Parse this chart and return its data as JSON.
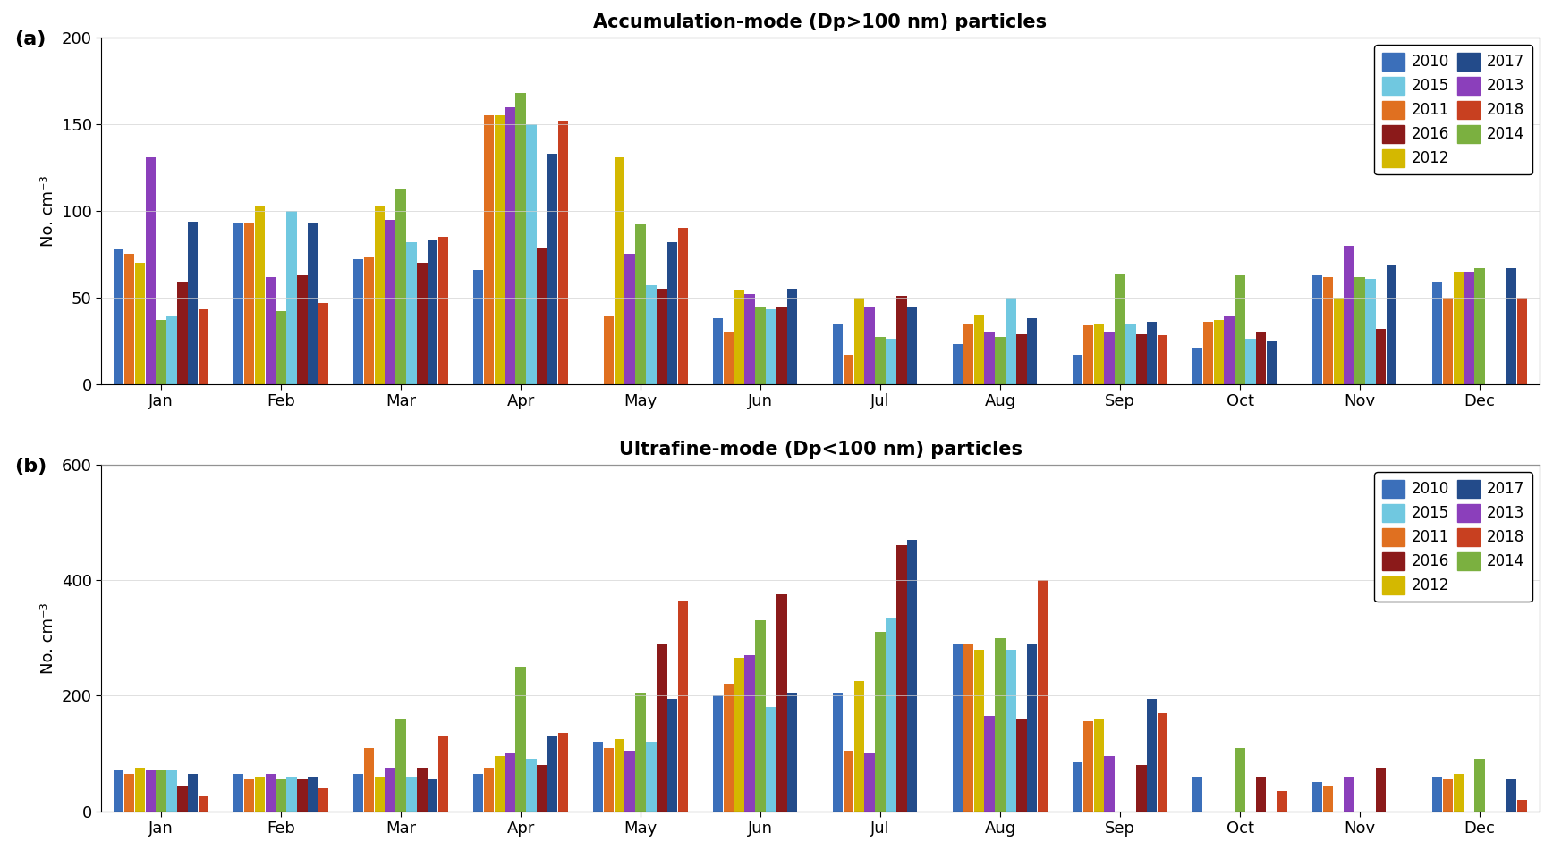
{
  "months": [
    "Jan",
    "Feb",
    "Mar",
    "Apr",
    "May",
    "Jun",
    "Jul",
    "Aug",
    "Sep",
    "Oct",
    "Nov",
    "Dec"
  ],
  "years": [
    "2010",
    "2011",
    "2012",
    "2013",
    "2014",
    "2015",
    "2016",
    "2017",
    "2018"
  ],
  "colors": {
    "2010": "#3B6FBA",
    "2011": "#E07020",
    "2012": "#D4B800",
    "2013": "#8B3FBB",
    "2014": "#7BB040",
    "2015": "#70C8E0",
    "2016": "#8B1A1A",
    "2017": "#234B8A",
    "2018": "#C84020"
  },
  "panel_a": {
    "title": "Accumulation-mode (Dp>100 nm) particles",
    "ylabel": "No. cm⁻³",
    "ylim": [
      0,
      200
    ],
    "yticks": [
      0,
      50,
      100,
      150,
      200
    ],
    "data": {
      "2010": [
        78,
        93,
        72,
        66,
        0,
        38,
        35,
        23,
        17,
        21,
        63,
        59
      ],
      "2011": [
        75,
        93,
        73,
        155,
        39,
        30,
        17,
        35,
        34,
        36,
        62,
        50
      ],
      "2012": [
        70,
        103,
        103,
        155,
        131,
        54,
        50,
        40,
        35,
        37,
        50,
        65
      ],
      "2013": [
        131,
        62,
        95,
        160,
        75,
        52,
        44,
        30,
        30,
        39,
        80,
        65
      ],
      "2014": [
        37,
        42,
        113,
        168,
        92,
        44,
        27,
        27,
        64,
        63,
        62,
        67
      ],
      "2015": [
        39,
        100,
        82,
        150,
        57,
        43,
        26,
        50,
        35,
        26,
        61,
        0
      ],
      "2016": [
        59,
        63,
        70,
        79,
        55,
        45,
        51,
        29,
        29,
        30,
        32,
        0
      ],
      "2017": [
        94,
        93,
        83,
        133,
        82,
        55,
        44,
        38,
        36,
        25,
        69,
        67
      ],
      "2018": [
        43,
        47,
        85,
        152,
        90,
        0,
        0,
        0,
        28,
        0,
        0,
        50
      ]
    }
  },
  "panel_b": {
    "title": "Ultrafine-mode (Dp<100 nm) particles",
    "ylabel": "No. cm⁻³",
    "ylim": [
      0,
      600
    ],
    "yticks": [
      0,
      200,
      400,
      600
    ],
    "data": {
      "2010": [
        70,
        65,
        65,
        65,
        120,
        200,
        205,
        290,
        85,
        60,
        50,
        60
      ],
      "2011": [
        65,
        55,
        110,
        75,
        110,
        220,
        105,
        290,
        155,
        0,
        45,
        55
      ],
      "2012": [
        75,
        60,
        60,
        95,
        125,
        265,
        225,
        280,
        160,
        0,
        0,
        65
      ],
      "2013": [
        70,
        65,
        75,
        100,
        105,
        270,
        100,
        165,
        95,
        0,
        60,
        0
      ],
      "2014": [
        70,
        55,
        160,
        250,
        205,
        330,
        310,
        300,
        0,
        110,
        0,
        90
      ],
      "2015": [
        70,
        60,
        60,
        90,
        120,
        180,
        335,
        280,
        0,
        0,
        0,
        0
      ],
      "2016": [
        45,
        55,
        75,
        80,
        290,
        375,
        460,
        160,
        80,
        60,
        75,
        0
      ],
      "2017": [
        65,
        60,
        55,
        130,
        195,
        205,
        470,
        290,
        195,
        0,
        0,
        55
      ],
      "2018": [
        25,
        40,
        130,
        135,
        365,
        0,
        0,
        400,
        170,
        35,
        0,
        20
      ]
    }
  }
}
